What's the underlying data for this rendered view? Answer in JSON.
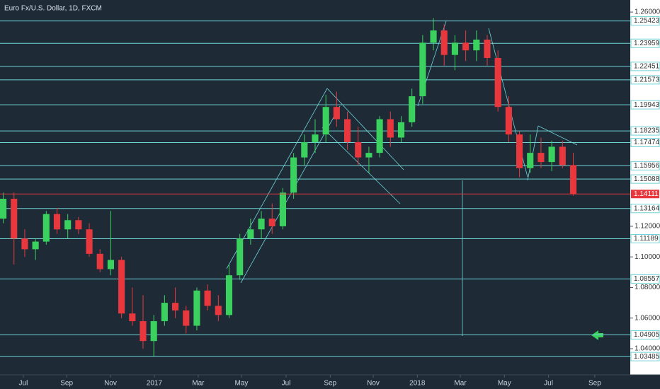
{
  "chart_data": {
    "type": "candlestick",
    "title": "Euro Fx/U.S. Dollar, 1D, FXCM",
    "candles": {
      "open": [
        1.125,
        1.138,
        1.112,
        1.105,
        1.11,
        1.128,
        1.118,
        1.124,
        1.118,
        1.102,
        1.092,
        1.098,
        1.063,
        1.058,
        1.045,
        1.058,
        1.07,
        1.065,
        1.055,
        1.078,
        1.068,
        1.062,
        1.088,
        1.112,
        1.118,
        1.125,
        1.12,
        1.142,
        1.165,
        1.175,
        1.18,
        1.198,
        1.19,
        1.175,
        1.165,
        1.168,
        1.19,
        1.178,
        1.188,
        1.205,
        1.24,
        1.248,
        1.232,
        1.24,
        1.235,
        1.242,
        1.23,
        1.198,
        1.18,
        1.158,
        1.168,
        1.162,
        1.172,
        1.16
      ],
      "high": [
        1.142,
        1.142,
        1.118,
        1.112,
        1.13,
        1.132,
        1.128,
        1.126,
        1.122,
        1.105,
        1.13,
        1.1,
        1.08,
        1.075,
        1.062,
        1.075,
        1.08,
        1.068,
        1.08,
        1.082,
        1.075,
        1.095,
        1.115,
        1.125,
        1.13,
        1.135,
        1.145,
        1.168,
        1.18,
        1.19,
        1.206,
        1.208,
        1.195,
        1.185,
        1.172,
        1.192,
        1.195,
        1.192,
        1.21,
        1.245,
        1.256,
        1.252,
        1.245,
        1.248,
        1.248,
        1.245,
        1.235,
        1.205,
        1.182,
        1.18,
        1.178,
        1.176,
        1.176,
        1.168
      ],
      "low": [
        1.122,
        1.095,
        1.1,
        1.098,
        1.108,
        1.115,
        1.112,
        1.115,
        1.1,
        1.09,
        1.088,
        1.06,
        1.055,
        1.04,
        1.035,
        1.055,
        1.06,
        1.05,
        1.052,
        1.065,
        1.058,
        1.06,
        1.085,
        1.108,
        1.112,
        1.115,
        1.118,
        1.138,
        1.16,
        1.168,
        1.175,
        1.185,
        1.17,
        1.16,
        1.155,
        1.165,
        1.172,
        1.175,
        1.185,
        1.2,
        1.235,
        1.225,
        1.222,
        1.228,
        1.228,
        1.225,
        1.195,
        1.175,
        1.152,
        1.155,
        1.158,
        1.156,
        1.158,
        1.14
      ],
      "close": [
        1.138,
        1.112,
        1.105,
        1.11,
        1.128,
        1.118,
        1.124,
        1.118,
        1.102,
        1.092,
        1.098,
        1.063,
        1.058,
        1.045,
        1.058,
        1.07,
        1.065,
        1.055,
        1.078,
        1.068,
        1.062,
        1.088,
        1.112,
        1.118,
        1.125,
        1.12,
        1.142,
        1.165,
        1.175,
        1.18,
        1.198,
        1.19,
        1.175,
        1.165,
        1.168,
        1.19,
        1.178,
        1.188,
        1.205,
        1.24,
        1.248,
        1.232,
        1.24,
        1.235,
        1.242,
        1.23,
        1.198,
        1.18,
        1.158,
        1.168,
        1.162,
        1.172,
        1.16,
        1.141
      ]
    },
    "up_color": "#3ad15e",
    "down_color": "#e8383d",
    "xlim": [
      -0.3,
      58.3
    ],
    "xticks": [
      {
        "value": 1.87,
        "label": "Jul"
      },
      {
        "value": 5.9,
        "label": "Sep"
      },
      {
        "value": 9.97,
        "label": "Nov"
      },
      {
        "value": 14.05,
        "label": "2017"
      },
      {
        "value": 18.13,
        "label": "Mar"
      },
      {
        "value": 22.15,
        "label": "May"
      },
      {
        "value": 26.3,
        "label": "Jul"
      },
      {
        "value": 30.4,
        "label": "Sep"
      },
      {
        "value": 34.4,
        "label": "Nov"
      },
      {
        "value": 38.5,
        "label": "2018"
      },
      {
        "value": 42.5,
        "label": "Mar"
      },
      {
        "value": 46.6,
        "label": "May"
      },
      {
        "value": 50.7,
        "label": "Jul"
      },
      {
        "value": 55,
        "label": "Sep"
      }
    ],
    "ylim": [
      1.0229,
      1.2679
    ],
    "yticks": [
      {
        "value": 1.26,
        "label": "1.26000"
      },
      {
        "value": 1.12,
        "label": "1.12000"
      },
      {
        "value": 1.1,
        "label": "1.10000"
      },
      {
        "value": 1.08,
        "label": "1.08000"
      },
      {
        "value": 1.06,
        "label": "1.06000"
      },
      {
        "value": 1.04,
        "label": "1.04000"
      }
    ],
    "levels": [
      {
        "value": 1.25423,
        "label": "1.25423"
      },
      {
        "value": 1.23959,
        "label": "1.23959"
      },
      {
        "value": 1.22451,
        "label": "1.22451"
      },
      {
        "value": 1.21573,
        "label": "1.21573"
      },
      {
        "value": 1.19943,
        "label": "1.19943"
      },
      {
        "value": 1.18235,
        "label": "1.18235"
      },
      {
        "value": 1.17474,
        "label": "1.17474"
      },
      {
        "value": 1.15956,
        "label": "1.15956"
      },
      {
        "value": 1.15088,
        "label": "1.15088"
      },
      {
        "value": 1.13164,
        "label": "1.13164"
      },
      {
        "value": 1.11189,
        "label": "1.11189"
      },
      {
        "value": 1.08557,
        "label": "1.08557"
      },
      {
        "value": 1.04905,
        "label": "1.04905"
      },
      {
        "value": 1.03485,
        "label": "1.03485"
      }
    ],
    "level_color": "#6fd3d6",
    "current_price": {
      "value": 1.14111,
      "label": "1.14111"
    },
    "current_color": "#e8383d"
  }
}
